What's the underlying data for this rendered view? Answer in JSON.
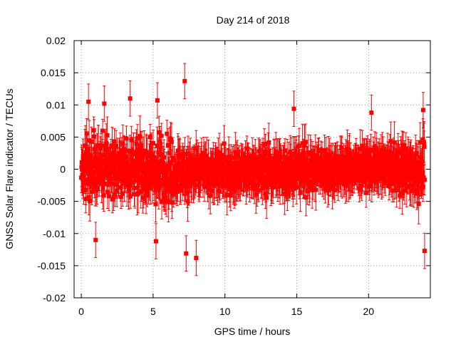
{
  "chart_data": {
    "type": "scatter",
    "title": "Day 214 of 2018",
    "xlabel": "GPS time / hours",
    "ylabel": "GNSS Solar Flare indicator / TECUs",
    "xlim": [
      -0.5,
      24.3
    ],
    "ylim": [
      -0.02,
      0.02
    ],
    "x_ticks": [
      0,
      5,
      10,
      15,
      20
    ],
    "x_tick_labels": [
      "0",
      "5",
      "10",
      "15",
      "20"
    ],
    "y_ticks": [
      -0.02,
      -0.015,
      -0.01,
      -0.005,
      0,
      0.005,
      0.01,
      0.015,
      0.02
    ],
    "y_tick_labels": [
      "-0.02",
      "-0.015",
      "-0.01",
      "-0.005",
      "0",
      "0.005",
      "0.01",
      "0.015",
      "0.02"
    ],
    "grid": true,
    "series_color": "#ff0000",
    "error_bars": true,
    "typical_error": 0.0025,
    "n_points": 1400,
    "x_range_data": [
      0,
      23.9
    ],
    "notable_points": [
      {
        "x": 7.2,
        "y": 0.0137
      },
      {
        "x": 8.0,
        "y": -0.0138
      },
      {
        "x": 7.3,
        "y": -0.0131
      },
      {
        "x": 23.9,
        "y": -0.0127
      },
      {
        "x": 1.0,
        "y": -0.011
      },
      {
        "x": 5.2,
        "y": -0.0112
      },
      {
        "x": 3.4,
        "y": 0.011
      },
      {
        "x": 5.3,
        "y": 0.0107
      },
      {
        "x": 0.5,
        "y": 0.0105
      },
      {
        "x": 1.6,
        "y": 0.0102
      },
      {
        "x": 20.2,
        "y": 0.0088
      },
      {
        "x": 14.8,
        "y": 0.0094
      },
      {
        "x": 23.8,
        "y": 0.0092
      }
    ],
    "envelope": [
      {
        "x": 0,
        "y_min": -0.0085,
        "y_max": 0.009
      },
      {
        "x": 3,
        "y_min": -0.009,
        "y_max": 0.0095
      },
      {
        "x": 6,
        "y_min": -0.0095,
        "y_max": 0.009
      },
      {
        "x": 9,
        "y_min": -0.007,
        "y_max": 0.006
      },
      {
        "x": 12,
        "y_min": -0.007,
        "y_max": 0.0065
      },
      {
        "x": 15,
        "y_min": -0.007,
        "y_max": 0.007
      },
      {
        "x": 18,
        "y_min": -0.006,
        "y_max": 0.006
      },
      {
        "x": 21,
        "y_min": -0.0055,
        "y_max": 0.006
      },
      {
        "x": 23.9,
        "y_min": -0.0085,
        "y_max": 0.0085
      }
    ]
  }
}
